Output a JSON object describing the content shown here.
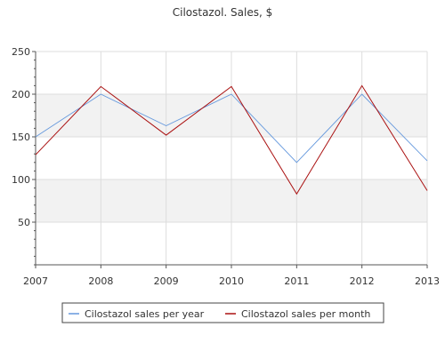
{
  "chart_data": {
    "type": "line",
    "title": "Cilostazol. Sales, $",
    "xlabel": "",
    "ylabel": "",
    "x": [
      2007,
      2008,
      2009,
      2010,
      2011,
      2012,
      2013
    ],
    "x_tick_labels": [
      "2007",
      "2008",
      "2009",
      "2010",
      "2011",
      "2012",
      "2013"
    ],
    "y_ticks": [
      50,
      100,
      150,
      200,
      250
    ],
    "y_tick_labels": [
      "50",
      "100",
      "150",
      "200",
      "250"
    ],
    "ylim": [
      0,
      250
    ],
    "grid": true,
    "legend_position": "bottom",
    "series": [
      {
        "name": "Cilostazol sales per year",
        "values": [
          150,
          200,
          163,
          200,
          120,
          200,
          122
        ],
        "color": "#6699dd"
      },
      {
        "name": "Cilostazol sales per month",
        "values": [
          129,
          209,
          152,
          209,
          83,
          210,
          87
        ],
        "color": "#aa1111"
      }
    ],
    "colors": {
      "band_fill": "#f2f2f2",
      "grid_line": "#dddddd",
      "axis_line": "#555555",
      "tick_text": "#333333",
      "legend_border": "#444444"
    }
  }
}
